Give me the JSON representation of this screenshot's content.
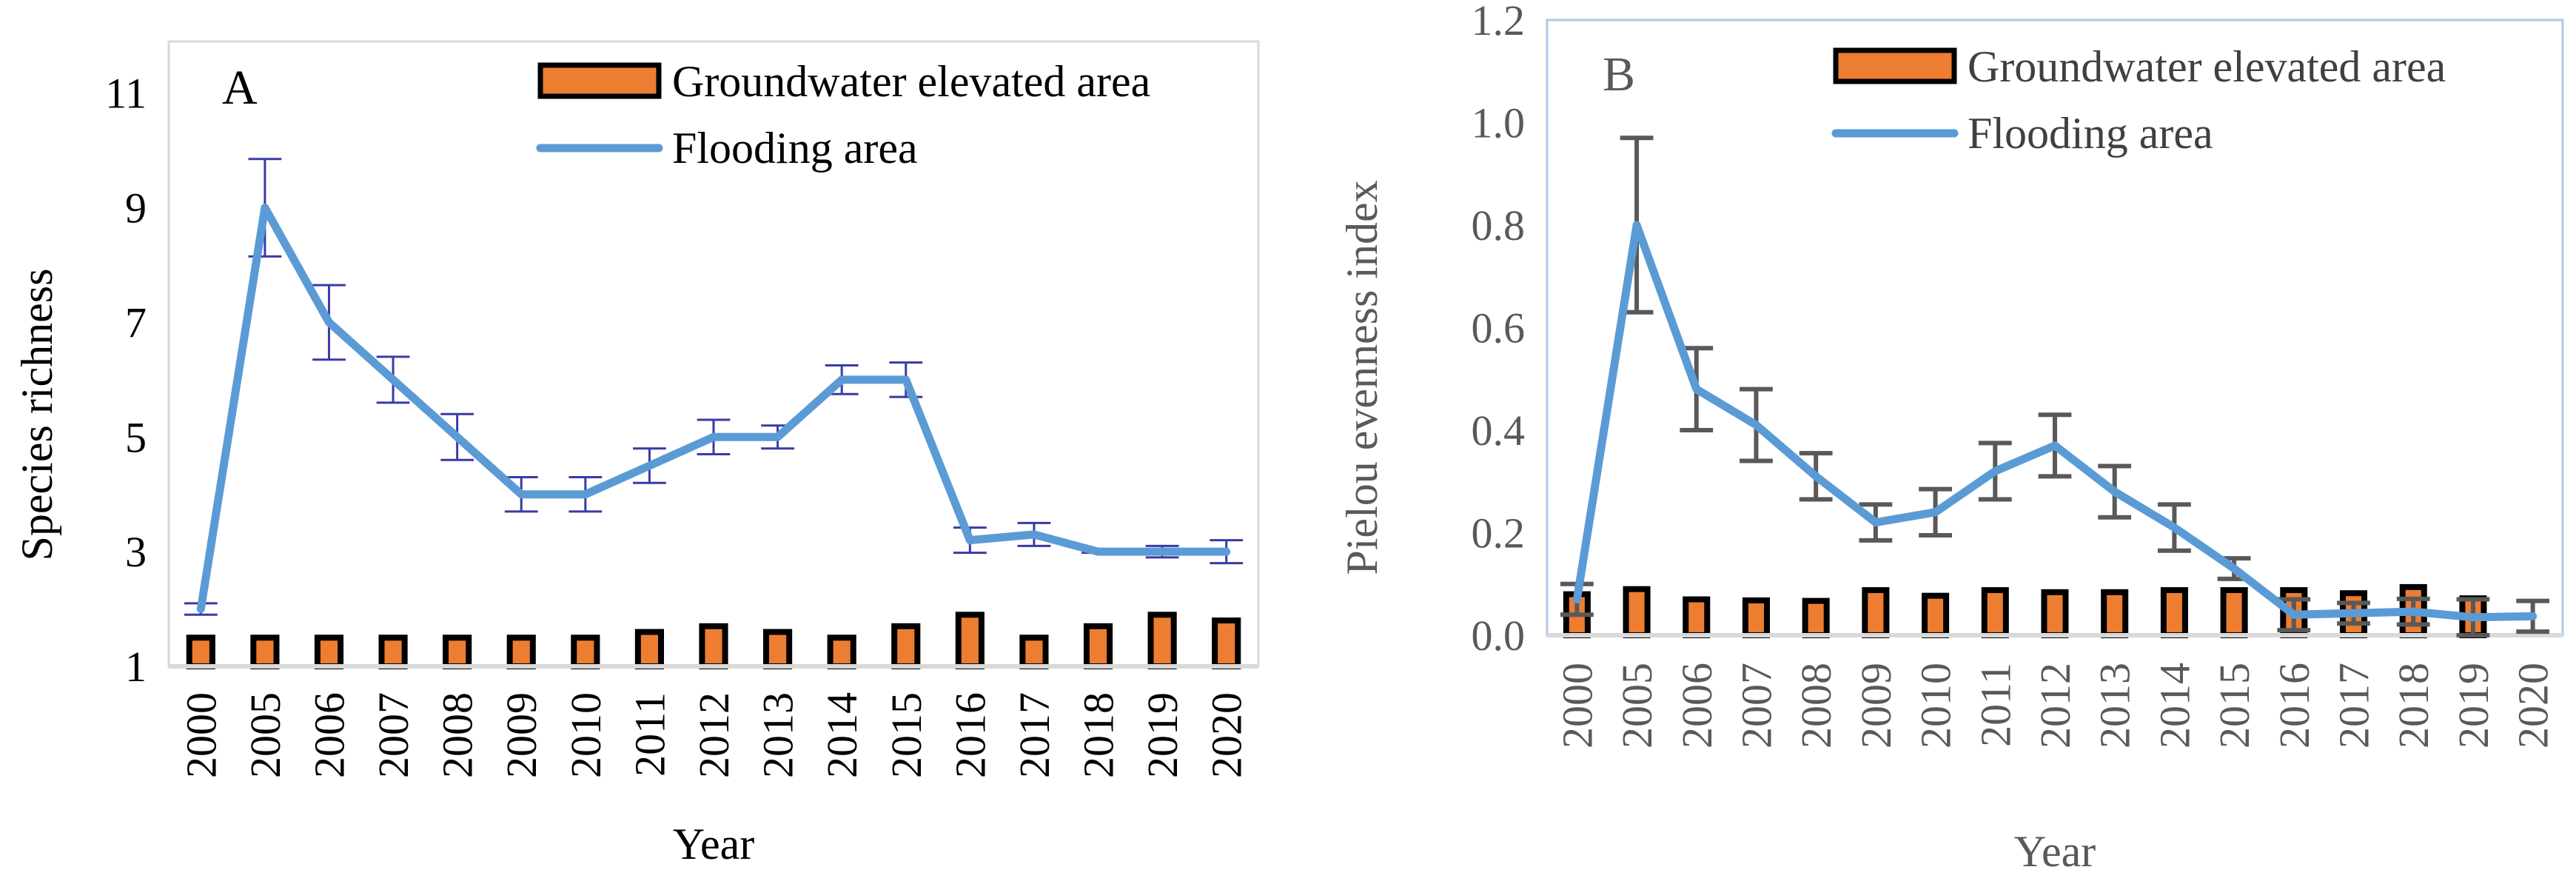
{
  "chart_data": [
    {
      "type": "bar+line",
      "panel_label": "A",
      "xlabel": "Year",
      "ylabel": "Species  richness",
      "ylim": [
        1,
        11.9
      ],
      "yticks": [
        "1",
        "3",
        "5",
        "7",
        "9",
        "11"
      ],
      "categories": [
        "2000",
        "2005",
        "2006",
        "2007",
        "2008",
        "2009",
        "2010",
        "2011",
        "2012",
        "2013",
        "2014",
        "2015",
        "2016",
        "2017",
        "2018",
        "2019",
        "2020"
      ],
      "legend_position": "top-right",
      "series": [
        {
          "name": "Groundwater elevated area",
          "kind": "bar",
          "color": "#ED7D31",
          "values": [
            1.5,
            1.5,
            1.5,
            1.5,
            1.5,
            1.5,
            1.5,
            1.6,
            1.7,
            1.6,
            1.5,
            1.7,
            1.9,
            1.5,
            1.7,
            1.9,
            1.8
          ]
        },
        {
          "name": "Flooding area",
          "kind": "line",
          "color": "#5B9BD5",
          "error_color": "#3A3AA8",
          "values": [
            2.0,
            9.0,
            7.0,
            6.0,
            5.0,
            4.0,
            4.0,
            4.5,
            5.0,
            5.0,
            6.0,
            6.0,
            3.2,
            3.3,
            3.0,
            3.0,
            3.0
          ],
          "errors": [
            0.1,
            0.85,
            0.65,
            0.4,
            0.4,
            0.3,
            0.3,
            0.3,
            0.3,
            0.2,
            0.25,
            0.3,
            0.22,
            0.2,
            0.02,
            0.1,
            0.2
          ]
        }
      ]
    },
    {
      "type": "bar+line",
      "panel_label": "B",
      "xlabel": "Year",
      "ylabel": "Pielou evenness index",
      "ylim": [
        0,
        1.2
      ],
      "yticks": [
        "0.0",
        "0.2",
        "0.4",
        "0.6",
        "0.8",
        "1.0",
        "1.2"
      ],
      "categories": [
        "2000",
        "2005",
        "2006",
        "2007",
        "2008",
        "2009",
        "2010",
        "2011",
        "2012",
        "2013",
        "2014",
        "2015",
        "2016",
        "2017",
        "2018",
        "2019",
        "2020"
      ],
      "legend_position": "top-right",
      "series": [
        {
          "name": "Groundwater elevated area",
          "kind": "bar",
          "color": "#ED7D31",
          "values": [
            0.08,
            0.09,
            0.07,
            0.068,
            0.067,
            0.088,
            0.077,
            0.088,
            0.084,
            0.084,
            0.088,
            0.088,
            0.088,
            0.082,
            0.094,
            0.072,
            0
          ]
        },
        {
          "name": "Flooding area",
          "kind": "line",
          "color": "#5B9BD5",
          "error_color": "#595959",
          "values": [
            0.07,
            0.8,
            0.48,
            0.41,
            0.31,
            0.22,
            0.24,
            0.32,
            0.37,
            0.28,
            0.21,
            0.13,
            0.04,
            0.043,
            0.046,
            0.035,
            0.037
          ],
          "errors": [
            0.03,
            0.17,
            0.08,
            0.07,
            0.045,
            0.035,
            0.045,
            0.055,
            0.06,
            0.05,
            0.045,
            0.02,
            0.03,
            0.02,
            0.025,
            0.035,
            0.03
          ]
        }
      ]
    }
  ]
}
